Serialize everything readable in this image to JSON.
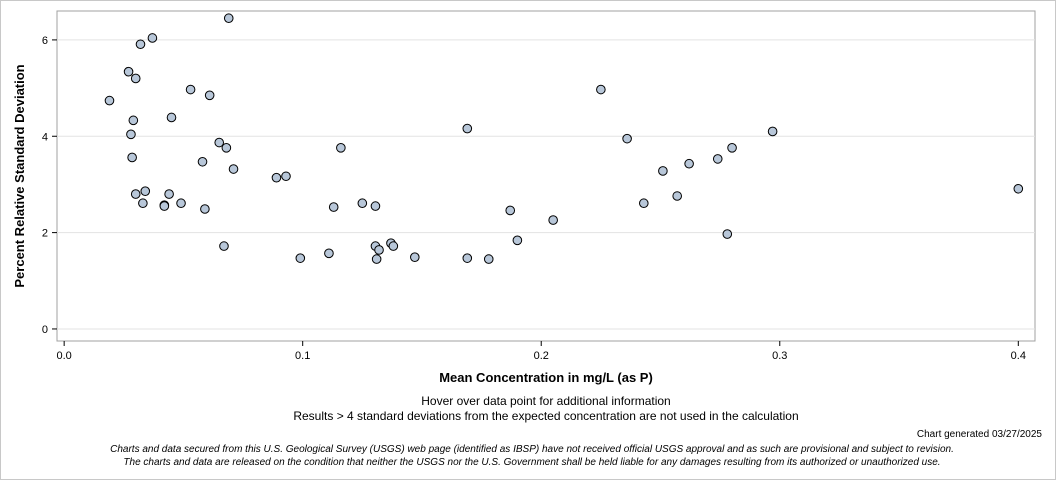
{
  "chart_data": {
    "type": "scatter",
    "xlabel": "Mean Concentration in mg/L (as P)",
    "ylabel": "Percent Relative Standard Deviation",
    "xlim": [
      -0.003,
      0.407
    ],
    "ylim": [
      -0.25,
      6.6
    ],
    "x_ticks": [
      0.0,
      0.1,
      0.2,
      0.3,
      0.4
    ],
    "x_tick_labels": [
      "0.0",
      "0.1",
      "0.2",
      "0.3",
      "0.4"
    ],
    "y_ticks": [
      0,
      2,
      4,
      6
    ],
    "y_tick_labels": [
      "0",
      "2",
      "4",
      "6"
    ],
    "grid": "horizontal",
    "marker_fill": "#b8c7d9",
    "marker_stroke": "#000000",
    "points": [
      {
        "x": 0.019,
        "y": 4.74
      },
      {
        "x": 0.027,
        "y": 5.34
      },
      {
        "x": 0.028,
        "y": 4.04
      },
      {
        "x": 0.0285,
        "y": 3.56
      },
      {
        "x": 0.029,
        "y": 4.33
      },
      {
        "x": 0.03,
        "y": 5.2
      },
      {
        "x": 0.03,
        "y": 2.8
      },
      {
        "x": 0.032,
        "y": 5.91
      },
      {
        "x": 0.033,
        "y": 2.61
      },
      {
        "x": 0.034,
        "y": 2.86
      },
      {
        "x": 0.037,
        "y": 6.04
      },
      {
        "x": 0.042,
        "y": 2.57
      },
      {
        "x": 0.042,
        "y": 2.55
      },
      {
        "x": 0.044,
        "y": 2.8
      },
      {
        "x": 0.045,
        "y": 4.39
      },
      {
        "x": 0.049,
        "y": 2.61
      },
      {
        "x": 0.053,
        "y": 4.97
      },
      {
        "x": 0.058,
        "y": 3.47
      },
      {
        "x": 0.059,
        "y": 2.49
      },
      {
        "x": 0.061,
        "y": 4.85
      },
      {
        "x": 0.065,
        "y": 3.87
      },
      {
        "x": 0.067,
        "y": 1.72
      },
      {
        "x": 0.068,
        "y": 3.76
      },
      {
        "x": 0.069,
        "y": 6.45
      },
      {
        "x": 0.071,
        "y": 3.32
      },
      {
        "x": 0.089,
        "y": 3.14
      },
      {
        "x": 0.093,
        "y": 3.17
      },
      {
        "x": 0.099,
        "y": 1.47
      },
      {
        "x": 0.111,
        "y": 1.57
      },
      {
        "x": 0.113,
        "y": 2.53
      },
      {
        "x": 0.116,
        "y": 3.76
      },
      {
        "x": 0.125,
        "y": 2.61
      },
      {
        "x": 0.1305,
        "y": 2.55
      },
      {
        "x": 0.1305,
        "y": 1.72
      },
      {
        "x": 0.131,
        "y": 1.45
      },
      {
        "x": 0.132,
        "y": 1.64
      },
      {
        "x": 0.137,
        "y": 1.78
      },
      {
        "x": 0.138,
        "y": 1.72
      },
      {
        "x": 0.147,
        "y": 1.49
      },
      {
        "x": 0.169,
        "y": 4.16
      },
      {
        "x": 0.169,
        "y": 1.47
      },
      {
        "x": 0.178,
        "y": 1.45
      },
      {
        "x": 0.187,
        "y": 2.46
      },
      {
        "x": 0.19,
        "y": 1.84
      },
      {
        "x": 0.205,
        "y": 2.26
      },
      {
        "x": 0.225,
        "y": 4.97
      },
      {
        "x": 0.236,
        "y": 3.95
      },
      {
        "x": 0.243,
        "y": 2.61
      },
      {
        "x": 0.251,
        "y": 3.28
      },
      {
        "x": 0.257,
        "y": 2.76
      },
      {
        "x": 0.262,
        "y": 3.43
      },
      {
        "x": 0.274,
        "y": 3.53
      },
      {
        "x": 0.278,
        "y": 1.97
      },
      {
        "x": 0.28,
        "y": 3.76
      },
      {
        "x": 0.297,
        "y": 4.1
      },
      {
        "x": 0.4,
        "y": 2.91
      }
    ]
  },
  "notes": {
    "hover": "Hover over data point for additional information",
    "exclusion": "Results > 4 standard deviations from the expected concentration are not used in the calculation"
  },
  "generated": "Chart generated 03/27/2025",
  "disclaimer": {
    "line1": "Charts and data secured from this U.S. Geological Survey (USGS) web page (identified as IBSP) have not received official USGS approval and as such are provisional and subject to revision.",
    "line2": "The charts and data are released on the condition that neither the USGS nor the U.S. Government shall be held liable for any damages resulting from its authorized or unauthorized use."
  }
}
